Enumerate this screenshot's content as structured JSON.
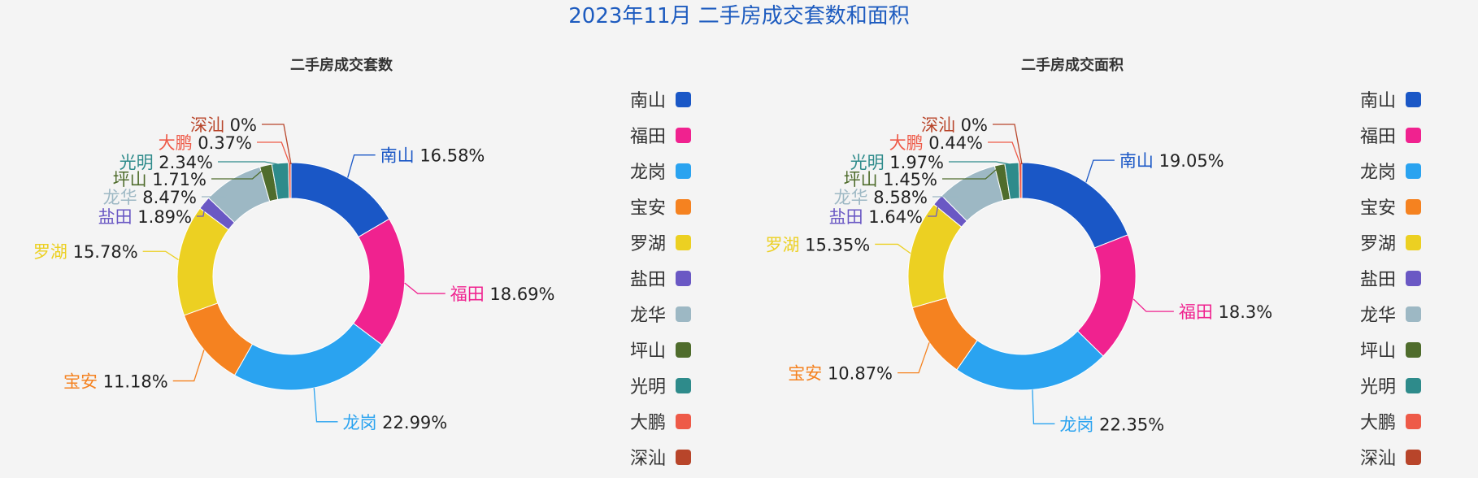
{
  "title": "2023年11月 二手房成交套数和面积",
  "legend": [
    "南山",
    "福田",
    "龙岗",
    "宝安",
    "罗湖",
    "盐田",
    "龙华",
    "坪山",
    "光明",
    "大鹏",
    "深汕"
  ],
  "colors": [
    "#1a57c6",
    "#f0228f",
    "#2aa3f0",
    "#f58220",
    "#ecd022",
    "#6a58c4",
    "#9db8c4",
    "#4f6c2c",
    "#2e8b8b",
    "#ee5a48",
    "#b8452a"
  ],
  "chart_data": [
    {
      "type": "pie",
      "title": "二手房成交套数",
      "categories": [
        "南山",
        "福田",
        "龙岗",
        "宝安",
        "罗湖",
        "盐田",
        "龙华",
        "坪山",
        "光明",
        "大鹏",
        "深汕"
      ],
      "values": [
        16.58,
        18.69,
        22.99,
        11.18,
        15.78,
        1.89,
        8.47,
        1.71,
        2.34,
        0.37,
        0
      ],
      "labels": [
        "16.58%",
        "18.69%",
        "22.99%",
        "11.18%",
        "15.78%",
        "1.89%",
        "8.47%",
        "1.71%",
        "2.34%",
        "0.37%",
        "0%"
      ]
    },
    {
      "type": "pie",
      "title": "二手房成交面积",
      "categories": [
        "南山",
        "福田",
        "龙岗",
        "宝安",
        "罗湖",
        "盐田",
        "龙华",
        "坪山",
        "光明",
        "大鹏",
        "深汕"
      ],
      "values": [
        19.05,
        18.3,
        22.35,
        10.87,
        15.35,
        1.64,
        8.58,
        1.45,
        1.97,
        0.44,
        0
      ],
      "labels": [
        "19.05%",
        "18.3%",
        "22.35%",
        "10.87%",
        "15.35%",
        "1.64%",
        "8.58%",
        "1.45%",
        "1.97%",
        "0.44%",
        "0%"
      ]
    }
  ]
}
